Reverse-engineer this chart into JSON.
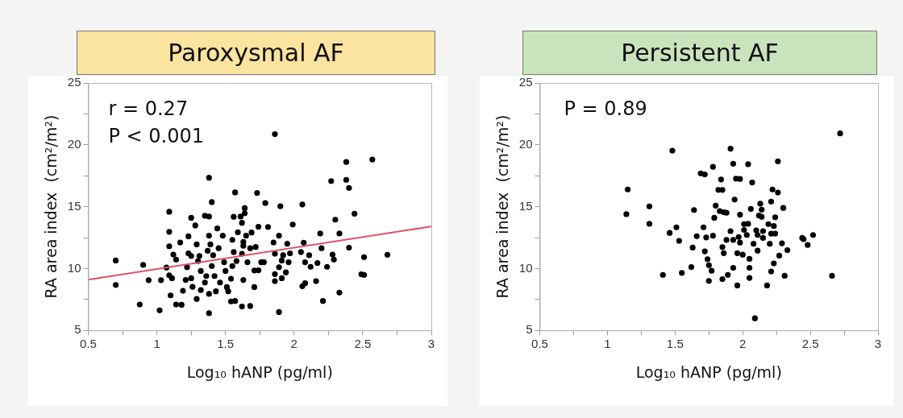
{
  "chart_data": [
    {
      "type": "scatter",
      "title": "Paroxysmal AF",
      "xlabel": "Log₁₀ hANP (pg/ml)",
      "ylabel": "RA area index  (cm²/m²)",
      "annotations": [
        "r = 0.27",
        "P < 0.001"
      ],
      "marker": "circle",
      "grid": false,
      "legend": false,
      "xlim": [
        0.5,
        3
      ],
      "xticks": [
        0.5,
        {
          "value": 0.75,
          "label": null
        },
        1,
        {
          "value": 1.25,
          "label": null
        },
        1.5,
        {
          "value": 1.75,
          "label": null
        },
        2,
        {
          "value": 2.25,
          "label": null
        },
        2.5,
        {
          "value": 2.75,
          "label": null
        },
        3
      ],
      "ylim": [
        5,
        25
      ],
      "yticks": [
        5,
        {
          "value": 7.5,
          "label": null
        },
        10,
        {
          "value": 12.5,
          "label": null
        },
        15,
        {
          "value": 17.5,
          "label": null
        },
        20,
        {
          "value": 22.5,
          "label": null
        },
        25
      ],
      "series": [
        {
          "color": "#000000",
          "x": [
            0.7,
            0.7,
            0.9,
            0.875,
            0.94,
            1.02,
            1.03,
            1.07,
            1.09,
            1.09,
            1.09,
            1.09,
            1.11,
            1.1,
            1.12,
            1.14,
            1.17,
            1.14,
            1.18,
            1.19,
            1.21,
            1.22,
            1.23,
            1.23,
            1.25,
            1.25,
            1.25,
            1.26,
            1.28,
            1.29,
            1.29,
            1.31,
            1.32,
            1.32,
            1.3,
            1.35,
            1.38,
            1.38,
            1.4,
            1.38,
            1.38,
            1.38,
            1.36,
            1.35,
            1.37,
            1.39,
            1.41,
            1.4,
            1.43,
            1.42,
            1.44,
            1.45,
            1.46,
            1.48,
            1.49,
            1.5,
            1.51,
            1.52,
            1.54,
            1.54,
            1.55,
            1.55,
            1.56,
            1.57,
            1.56,
            1.57,
            1.58,
            1.59,
            1.61,
            1.62,
            1.62,
            1.62,
            1.63,
            1.63,
            1.64,
            1.64,
            1.65,
            1.63,
            1.66,
            1.68,
            1.68,
            1.69,
            1.71,
            1.71,
            1.72,
            1.73,
            1.74,
            1.74,
            1.76,
            1.78,
            1.79,
            1.81,
            1.85,
            1.86,
            1.86,
            1.86,
            1.86,
            1.89,
            1.89,
            1.89,
            1.9,
            1.91,
            1.91,
            1.92,
            1.94,
            1.95,
            1.96,
            1.97,
            1.99,
            2.06,
            2.07,
            2.06,
            2.08,
            2.08,
            2.05,
            2.11,
            2.12,
            2.16,
            2.17,
            2.19,
            2.2,
            2.21,
            2.24,
            2.27,
            2.28,
            2.29,
            2.3,
            2.33,
            2.33,
            2.38,
            2.38,
            2.4,
            2.4,
            2.44,
            2.49,
            2.51,
            2.51,
            2.57,
            2.68
          ],
          "values": [
            10.65,
            8.67,
            10.29,
            7.09,
            9.06,
            6.62,
            9.06,
            10.08,
            14.59,
            12.97,
            11.8,
            9.45,
            9.22,
            7.83,
            11.13,
            10.72,
            12.11,
            7.09,
            7.07,
            8.2,
            9.08,
            10.1,
            11.23,
            12.6,
            14.1,
            11.02,
            9.22,
            8.52,
            13.48,
            7.54,
            11.95,
            11.02,
            9.8,
            8.26,
            10.61,
            14.26,
            14.2,
            17.34,
            15.37,
            12.66,
            6.39,
            7.95,
            9.39,
            8.87,
            11.43,
            11.95,
            11.07,
            10.2,
            8.16,
            9.39,
            13.24,
            11.64,
            8.87,
            12.66,
            10.51,
            9.8,
            8.5,
            8.16,
            7.34,
            9.18,
            10.2,
            12.32,
            14.18,
            16.15,
            11.33,
            7.38,
            10.61,
            12.93,
            14.2,
            13.69,
            6.93,
            11.19,
            9.08,
            12.15,
            14.88,
            14.47,
            12.66,
            11.84,
            10.51,
            6.97,
            11.64,
            12.91,
            8.5,
            9.84,
            11.74,
            16.11,
            13.38,
            9.86,
            10.51,
            10.51,
            15.29,
            13.36,
            12.11,
            20.86,
            9.55,
            8.98,
            11.19,
            6.48,
            10.1,
            12.66,
            15.04,
            10.65,
            9.22,
            11.07,
            9.69,
            12.01,
            10.51,
            11.23,
            13.55,
            15.18,
            12.09,
            8.57,
            8.81,
            10.51,
            11.33,
            11.07,
            10.14,
            8.98,
            10.45,
            12.83,
            11.64,
            7.38,
            10.14,
            17.07,
            11.13,
            10.72,
            13.95,
            12.83,
            8.05,
            18.61,
            17.17,
            16.52,
            11.68,
            14.43,
            9.53,
            9.49,
            10.92,
            18.81,
            11.11
          ]
        },
        {
          "type": "line",
          "color": "#e0506a",
          "marker": "none",
          "x": [
            0.5,
            3
          ],
          "values": [
            9.1,
            13.4
          ]
        }
      ]
    },
    {
      "type": "scatter",
      "title": "Persistent AF",
      "xlabel": "Log₁₀ hANP (pg/ml)",
      "ylabel": "RA area index  (cm²/m²)",
      "annotations": [
        "P = 0.89"
      ],
      "marker": "circle",
      "grid": false,
      "legend": false,
      "xlim": [
        0.5,
        3
      ],
      "xticks": [
        0.5,
        {
          "value": 0.75,
          "label": null
        },
        1,
        {
          "value": 1.25,
          "label": null
        },
        1.5,
        {
          "value": 1.75,
          "label": null
        },
        2,
        {
          "value": 2.25,
          "label": null
        },
        2.5,
        {
          "value": 2.75,
          "label": null
        },
        3
      ],
      "ylim": [
        5,
        25
      ],
      "yticks": [
        5,
        {
          "value": 7.5,
          "label": null
        },
        10,
        {
          "value": 12.5,
          "label": null
        },
        15,
        {
          "value": 17.5,
          "label": null
        },
        20,
        {
          "value": 22.5,
          "label": null
        },
        25
      ],
      "series": [
        {
          "color": "#000000",
          "x": [
            1.15,
            1.14,
            1.31,
            1.31,
            1.41,
            1.48,
            1.46,
            1.51,
            1.53,
            1.55,
            1.62,
            1.63,
            1.64,
            1.66,
            1.69,
            1.72,
            1.71,
            1.72,
            1.73,
            1.74,
            1.75,
            1.75,
            1.77,
            1.78,
            1.78,
            1.79,
            1.8,
            1.82,
            1.84,
            1.85,
            1.83,
            1.86,
            1.88,
            1.85,
            1.85,
            1.86,
            1.88,
            1.89,
            1.91,
            1.91,
            1.93,
            1.93,
            1.93,
            1.94,
            1.95,
            1.96,
            1.96,
            1.97,
            1.98,
            1.98,
            1.98,
            2.0,
            2.01,
            2.01,
            2.03,
            2.04,
            2.04,
            2.05,
            2.05,
            2.05,
            2.06,
            2.07,
            2.08,
            2.09,
            2.1,
            2.11,
            2.11,
            2.12,
            2.13,
            2.14,
            2.14,
            2.15,
            2.15,
            2.18,
            2.19,
            2.2,
            2.21,
            2.21,
            2.21,
            2.22,
            2.23,
            2.23,
            2.24,
            2.24,
            2.26,
            2.26,
            2.27,
            2.29,
            2.3,
            2.31,
            2.33,
            2.44,
            2.45,
            2.48,
            2.52,
            2.66,
            2.72
          ],
          "values": [
            16.39,
            14.39,
            15.02,
            13.61,
            9.49,
            19.53,
            12.88,
            13.33,
            12.24,
            9.65,
            10.12,
            11.69,
            14.73,
            12.61,
            17.69,
            17.61,
            13.33,
            11.39,
            12.51,
            10.76,
            10.27,
            9.0,
            9.82,
            12.65,
            18.22,
            14.1,
            15.08,
            16.35,
            17.2,
            16.35,
            14.65,
            14.55,
            14.51,
            11.73,
            9.14,
            11.24,
            12.31,
            9.49,
            19.69,
            13.02,
            12.31,
            18.47,
            10.06,
            15.57,
            17.27,
            11.24,
            8.63,
            12.55,
            12.1,
            14.35,
            17.24,
            11.12,
            13.59,
            13.12,
            12.71,
            18.43,
            13.61,
            10.78,
            10.06,
            9.24,
            14.82,
            16.96,
            12.0,
            5.98,
            13.08,
            12.71,
            11.45,
            14.29,
            15.24,
            14.18,
            14.76,
            13.02,
            12.47,
            8.63,
            13.59,
            12.0,
            12.82,
            15.41,
            9.76,
            16.39,
            10.41,
            13.43,
            14.14,
            12.82,
            18.67,
            16.14,
            11.04,
            12.04,
            14.9,
            9.41,
            11.49,
            12.47,
            12.37,
            11.9,
            12.71,
            9.41,
            20.92
          ]
        }
      ]
    }
  ]
}
